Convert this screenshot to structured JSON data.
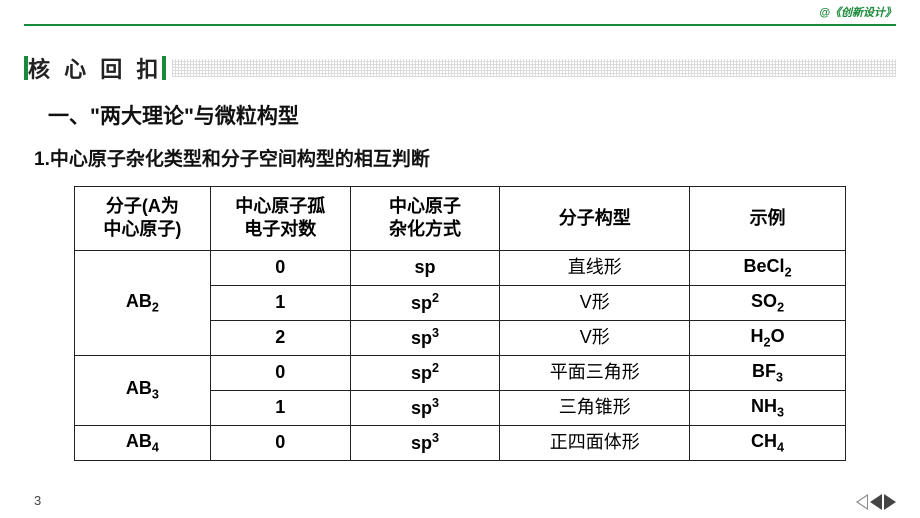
{
  "brand": "@《创新设计》",
  "section_title": "核 心 回 扣",
  "heading1": "一、\"两大理论\"与微粒构型",
  "heading2": "1.中心原子杂化类型和分子空间构型的相互判断",
  "page_number": "3",
  "table": {
    "headers": [
      "分子(A为中心原子)",
      "中心原子孤电子对数",
      "中心原子杂化方式",
      "分子构型",
      "示例"
    ],
    "groups": [
      {
        "molecule": "AB|sub|2",
        "rows": [
          {
            "lone": "0",
            "hyb": "sp",
            "shape": "直线形",
            "ex": "BeCl|sub|2"
          },
          {
            "lone": "1",
            "hyb": "sp|sup|2",
            "shape": "V形",
            "ex": "SO|sub|2"
          },
          {
            "lone": "2",
            "hyb": "sp|sup|3",
            "shape": "V形",
            "ex": "H|sub|2|/|O"
          }
        ]
      },
      {
        "molecule": "AB|sub|3",
        "rows": [
          {
            "lone": "0",
            "hyb": "sp|sup|2",
            "shape": "平面三角形",
            "ex": "BF|sub|3"
          },
          {
            "lone": "1",
            "hyb": "sp|sup|3",
            "shape": "三角锥形",
            "ex": "NH|sub|3"
          }
        ]
      },
      {
        "molecule": "AB|sub|4",
        "rows": [
          {
            "lone": "0",
            "hyb": "sp|sup|3",
            "shape": "正四面体形",
            "ex": "CH|sub|4"
          }
        ]
      }
    ]
  },
  "styles": {
    "accent_color": "#1a8a3a",
    "border_color": "#222222",
    "text_color": "#111111",
    "header_fontsize": 18,
    "cell_fontsize": 18,
    "title_fontsize": 22
  }
}
